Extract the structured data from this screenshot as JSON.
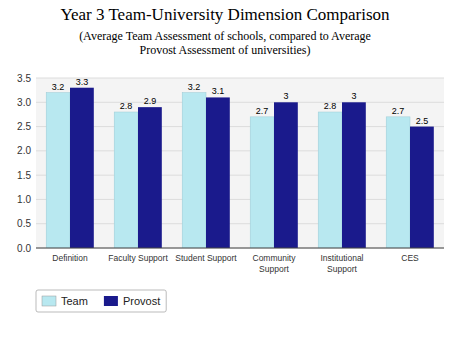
{
  "chart_data": {
    "type": "bar",
    "title": "Year 3 Team-University Dimension Comparison",
    "subtitle": "(Average Team Assessment of schools, compared to Average\nProvost Assessment of universities)",
    "categories": [
      "Definition",
      "Faculty Support",
      "Student Support",
      "Community\nSupport",
      "Institutional\nSupport",
      "CES"
    ],
    "series": [
      {
        "name": "Team",
        "color": "#b8e8f0",
        "values": [
          3.2,
          2.8,
          3.2,
          2.7,
          2.8,
          2.7
        ]
      },
      {
        "name": "Provost",
        "color": "#1a1a8c",
        "values": [
          3.3,
          2.9,
          3.1,
          3.0,
          3.0,
          2.5
        ]
      }
    ],
    "ylim": [
      0,
      3.5
    ],
    "yticks": [
      {
        "value": 0,
        "label": "0.0"
      },
      0.5,
      {
        "value": 1,
        "label": "1.0"
      },
      1.5,
      {
        "value": 2,
        "label": "2.0"
      },
      2.5,
      {
        "value": 3,
        "label": "3.0"
      },
      3.5
    ],
    "grid": true,
    "data_labels": true,
    "legend": "bottom"
  }
}
